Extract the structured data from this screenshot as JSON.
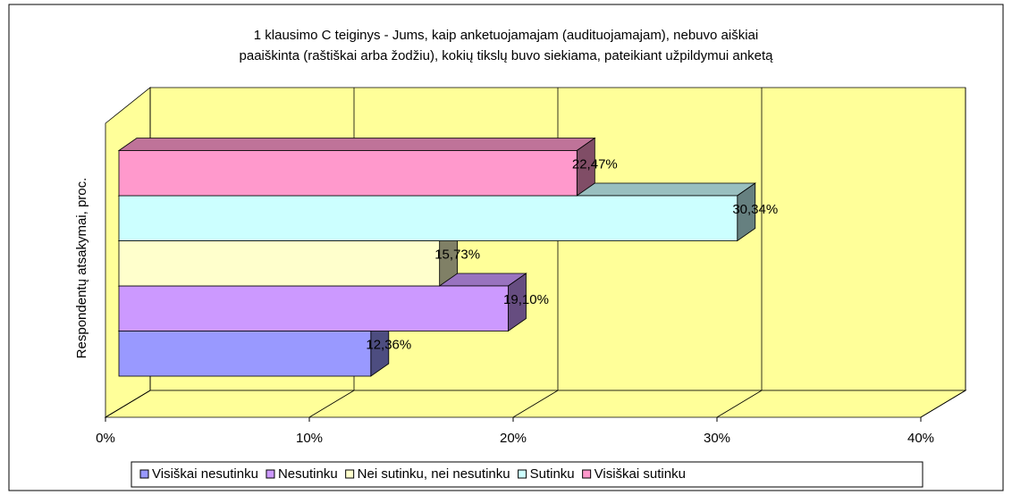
{
  "chart_data": {
    "type": "bar",
    "orientation": "horizontal",
    "title": [
      "1 klausimo C teiginys - Jums, kaip anketuojamajam (audituojamajam), nebuvo aiškiai",
      "paaiškinta (raštiškai arba žodžiu), kokių tikslų buvo siekiama, pateikiant užpildymui anketą"
    ],
    "y_axis_label": "Respondentų atsakymai, proc.",
    "xlim": [
      0,
      40
    ],
    "xticks": [
      {
        "value": 0,
        "label": "0%"
      },
      {
        "value": 10,
        "label": "10%"
      },
      {
        "value": 20,
        "label": "20%"
      },
      {
        "value": 30,
        "label": "30%"
      },
      {
        "value": 40,
        "label": "40%"
      }
    ],
    "grid": true,
    "legend": "bottom",
    "series": [
      {
        "name": "Visiškai nesutinku",
        "color": "#9999ff",
        "values": [
          12.36
        ],
        "value_labels": [
          "12,36%"
        ]
      },
      {
        "name": "Nesutinku",
        "color": "#cc99ff",
        "values": [
          19.1
        ],
        "value_labels": [
          "19,10%"
        ]
      },
      {
        "name": "Nei sutinku, nei nesutinku",
        "color": "#ffffcc",
        "values": [
          15.73
        ],
        "value_labels": [
          "15,73%"
        ]
      },
      {
        "name": "Sutinku",
        "color": "#ccffff",
        "values": [
          30.34
        ],
        "value_labels": [
          "30,34%"
        ]
      },
      {
        "name": "Visiškai sutinku",
        "color": "#ff99cc",
        "values": [
          22.47
        ],
        "value_labels": [
          "22,47%"
        ]
      }
    ]
  }
}
